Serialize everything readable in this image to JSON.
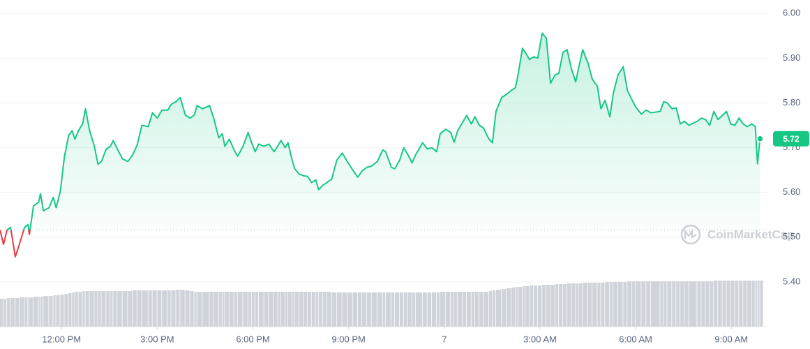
{
  "chart_data": {
    "type": "line",
    "watermark": "CoinMarketCap",
    "x": [
      10.07,
      10.18,
      10.29,
      10.4,
      10.55,
      10.69,
      10.84,
      10.95,
      10.99,
      11.12,
      11.28,
      11.34,
      11.43,
      11.61,
      11.74,
      11.83,
      11.96,
      12.09,
      12.22,
      12.33,
      12.42,
      12.53,
      12.66,
      12.75,
      12.88,
      13.03,
      13.14,
      13.25,
      13.4,
      13.53,
      13.62,
      13.75,
      13.91,
      14.08,
      14.23,
      14.37,
      14.52,
      14.72,
      14.85,
      15.0,
      15.15,
      15.33,
      15.44,
      15.59,
      15.72,
      15.88,
      16.03,
      16.16,
      16.25,
      16.42,
      16.64,
      16.77,
      16.93,
      17.04,
      17.12,
      17.26,
      17.41,
      17.52,
      17.69,
      17.85,
      17.96,
      18.07,
      18.18,
      18.35,
      18.5,
      18.66,
      18.79,
      18.88,
      19.01,
      19.1,
      19.23,
      19.31,
      19.45,
      19.6,
      19.71,
      19.84,
      19.97,
      20.06,
      20.19,
      20.32,
      20.47,
      20.63,
      20.8,
      20.96,
      21.13,
      21.29,
      21.42,
      21.57,
      21.72,
      21.9,
      22.07,
      22.16,
      22.34,
      22.45,
      22.6,
      22.73,
      22.86,
      22.99,
      23.1,
      23.32,
      23.47,
      23.61,
      23.76,
      23.87,
      24.04,
      24.2,
      24.31,
      24.42,
      24.57,
      24.7,
      24.85,
      24.96,
      25.1,
      25.23,
      25.4,
      25.51,
      25.62,
      25.8,
      25.95,
      26.1,
      26.23,
      26.32,
      26.45,
      26.54,
      26.67,
      26.8,
      26.93,
      27.07,
      27.2,
      27.33,
      27.48,
      27.59,
      27.72,
      27.85,
      27.99,
      28.12,
      28.21,
      28.34,
      28.51,
      28.64,
      28.8,
      28.91,
      29.04,
      29.19,
      29.3,
      29.45,
      29.61,
      29.74,
      29.89,
      30.0,
      30.18,
      30.33,
      30.48,
      30.77,
      30.88,
      30.99,
      31.14,
      31.27,
      31.4,
      31.53,
      31.67,
      31.93,
      32.06,
      32.19,
      32.32,
      32.45,
      32.58,
      32.72,
      32.85,
      32.98,
      33.11,
      33.24,
      33.37,
      33.5,
      33.64,
      33.75,
      33.82,
      33.9
    ],
    "values": [
      5.516,
      5.484,
      5.516,
      5.522,
      5.456,
      5.487,
      5.522,
      5.528,
      5.506,
      5.57,
      5.578,
      5.597,
      5.559,
      5.566,
      5.589,
      5.566,
      5.602,
      5.68,
      5.727,
      5.738,
      5.719,
      5.738,
      5.753,
      5.787,
      5.738,
      5.703,
      5.663,
      5.669,
      5.697,
      5.703,
      5.716,
      5.697,
      5.675,
      5.669,
      5.684,
      5.706,
      5.75,
      5.747,
      5.778,
      5.766,
      5.784,
      5.784,
      5.797,
      5.803,
      5.812,
      5.773,
      5.766,
      5.773,
      5.794,
      5.787,
      5.794,
      5.766,
      5.722,
      5.731,
      5.703,
      5.719,
      5.695,
      5.681,
      5.703,
      5.734,
      5.711,
      5.691,
      5.708,
      5.703,
      5.708,
      5.691,
      5.705,
      5.716,
      5.7,
      5.711,
      5.672,
      5.653,
      5.641,
      5.637,
      5.636,
      5.622,
      5.628,
      5.606,
      5.616,
      5.622,
      5.63,
      5.672,
      5.688,
      5.669,
      5.65,
      5.634,
      5.648,
      5.656,
      5.659,
      5.669,
      5.695,
      5.691,
      5.656,
      5.653,
      5.672,
      5.7,
      5.684,
      5.666,
      5.684,
      5.711,
      5.697,
      5.7,
      5.691,
      5.731,
      5.741,
      5.734,
      5.712,
      5.738,
      5.756,
      5.772,
      5.753,
      5.769,
      5.75,
      5.744,
      5.719,
      5.711,
      5.781,
      5.812,
      5.819,
      5.828,
      5.834,
      5.866,
      5.922,
      5.913,
      5.897,
      5.903,
      5.9,
      5.956,
      5.944,
      5.844,
      5.863,
      5.866,
      5.913,
      5.919,
      5.875,
      5.847,
      5.878,
      5.919,
      5.888,
      5.853,
      5.837,
      5.787,
      5.806,
      5.769,
      5.822,
      5.863,
      5.881,
      5.828,
      5.806,
      5.791,
      5.775,
      5.784,
      5.778,
      5.781,
      5.803,
      5.8,
      5.787,
      5.789,
      5.753,
      5.759,
      5.75,
      5.759,
      5.766,
      5.763,
      5.75,
      5.781,
      5.763,
      5.772,
      5.781,
      5.753,
      5.75,
      5.766,
      5.753,
      5.747,
      5.753,
      5.747,
      5.664,
      5.722
    ],
    "volume": [
      40,
      40,
      41,
      41,
      41,
      42,
      42,
      42,
      42,
      43,
      43,
      43,
      44,
      44,
      45,
      45,
      46,
      47,
      48,
      49,
      50,
      50,
      51,
      51,
      51,
      51,
      51,
      51,
      51,
      51,
      51,
      51,
      51,
      51,
      52,
      52,
      52,
      52,
      52,
      52,
      52,
      52,
      52,
      53,
      53,
      52,
      51,
      50,
      50,
      50,
      50,
      50,
      50,
      50,
      50,
      50,
      50,
      50,
      50,
      50,
      50,
      50,
      50,
      50,
      50,
      50,
      50,
      50,
      50,
      50,
      50,
      50,
      50,
      50,
      50,
      50,
      50,
      50,
      50,
      50,
      49,
      49,
      49,
      49,
      49,
      49,
      49,
      49,
      49,
      49,
      49,
      49,
      49,
      49,
      49,
      49,
      49,
      49,
      49,
      49,
      49,
      49,
      49,
      50,
      50,
      50,
      50,
      50,
      50,
      50,
      50,
      50,
      50,
      50,
      51,
      52,
      53,
      54,
      55,
      56,
      57,
      57,
      58,
      58,
      59,
      59,
      59,
      60,
      60,
      60,
      61,
      61,
      61,
      62,
      62,
      62,
      62,
      63,
      63,
      63,
      63,
      63,
      64,
      64,
      64,
      64,
      64,
      65,
      65,
      65,
      65,
      65,
      65,
      65,
      65,
      65,
      65,
      65,
      65,
      65,
      65,
      65,
      65,
      65,
      65,
      66,
      66,
      66,
      66,
      66,
      66,
      66,
      66,
      66,
      66,
      66,
      66,
      66
    ],
    "volume_lim": [
      0,
      100
    ],
    "baseline": 5.516,
    "current_price": 5.72,
    "up_color": "#16c784",
    "down_color": "#ea3943",
    "volume_color": "#cfd3da",
    "xlim": [
      10.07,
      34.0
    ],
    "xticks": [
      {
        "value": 12,
        "label": "12:00 PM"
      },
      {
        "value": 15,
        "label": "3:00 PM"
      },
      {
        "value": 18,
        "label": "6:00 PM"
      },
      {
        "value": 21,
        "label": "9:00 PM"
      },
      {
        "value": 24,
        "label": "7"
      },
      {
        "value": 27,
        "label": "3:00 AM"
      },
      {
        "value": 30,
        "label": "6:00 AM"
      },
      {
        "value": 33,
        "label": "9:00 AM"
      }
    ],
    "ylim": [
      5.3,
      6.03
    ],
    "yticks": [
      {
        "value": 5.4,
        "label": "5.40"
      },
      {
        "value": 5.5,
        "label": "5.50"
      },
      {
        "value": 5.6,
        "label": "5.60"
      },
      {
        "value": 5.7,
        "label": "5.70"
      },
      {
        "value": 5.8,
        "label": "5.80"
      },
      {
        "value": 5.9,
        "label": "5.90"
      },
      {
        "value": 6.0,
        "label": "6.00"
      }
    ],
    "grid": true
  }
}
